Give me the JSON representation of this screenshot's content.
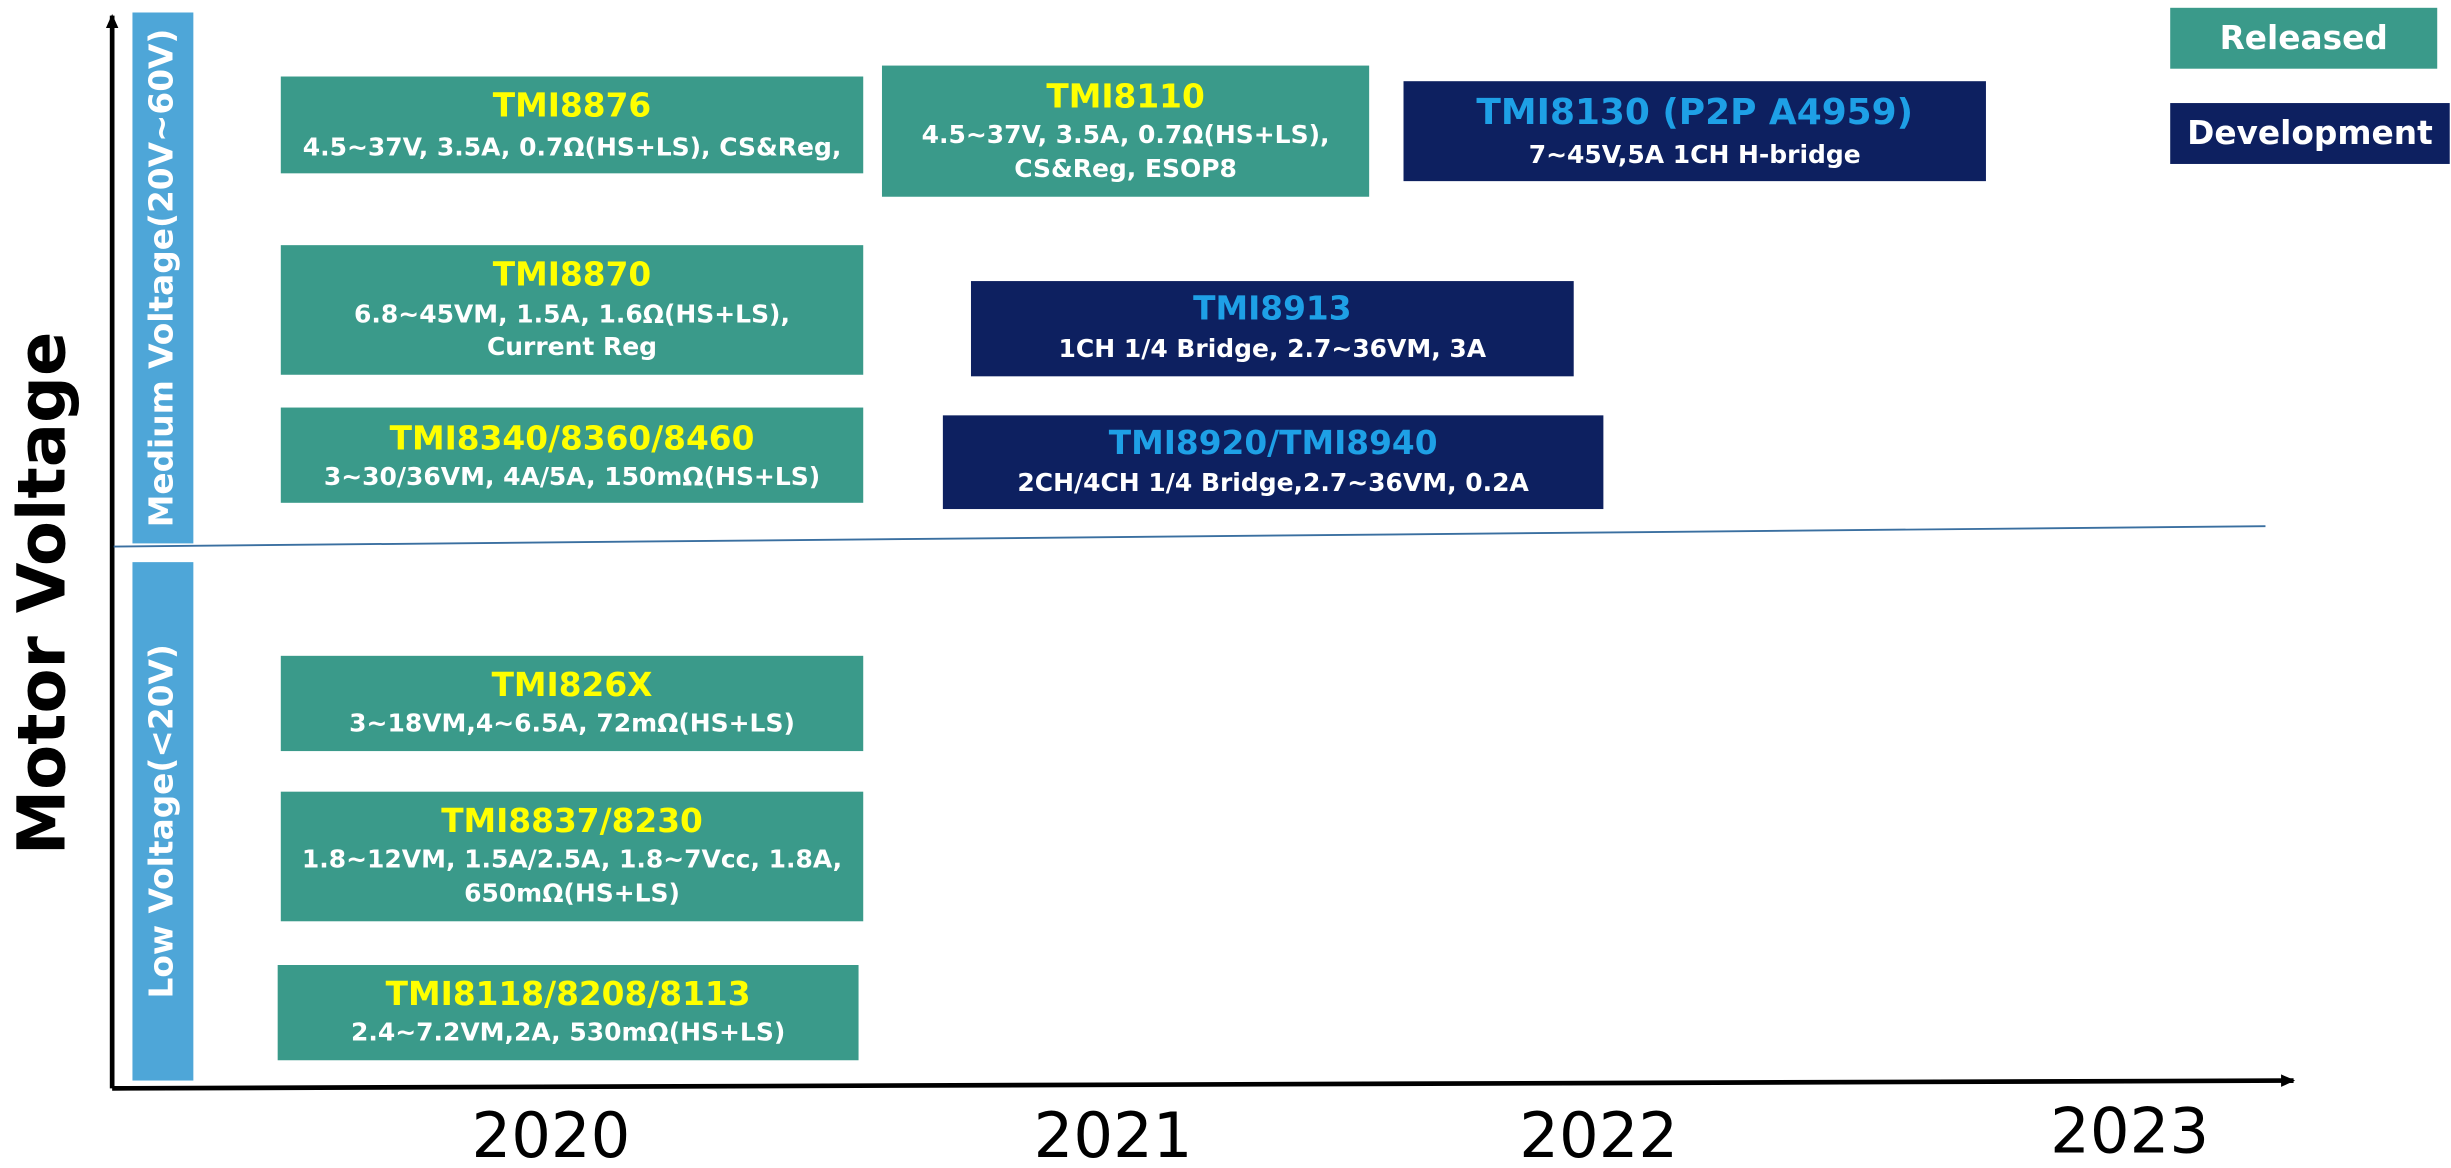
{
  "y_axis_label": "Motor Voltage",
  "bands": [
    "Medium Voltage(20V~60V)",
    "Low Voltage(<20V)"
  ],
  "years": [
    "2020",
    "2021",
    "2022",
    "2023"
  ],
  "legend": [
    {
      "label": "Released",
      "color": "#3a9a8a"
    },
    {
      "label": "Development",
      "color": "#0d2060"
    }
  ],
  "products": [
    {
      "name": "TMI8876",
      "lines": [
        "4.5~37V, 3.5A, 0.7Ω(HS+LS), CS&Reg,"
      ],
      "color": "#3a9a8a",
      "title_color": "#ffff00"
    },
    {
      "name": "TMI8110",
      "lines": [
        "4.5~37V, 3.5A, 0.7Ω(HS+LS),",
        "CS&Reg,   ESOP8"
      ],
      "color": "#3a9a8a",
      "title_color": "#ffff00"
    },
    {
      "name": "TMI8130 (P2P A4959)",
      "lines": [
        "7~45V,5A 1CH H-bridge"
      ],
      "color": "#0d2060",
      "title_color": "#1ea0e6"
    },
    {
      "name": "TMI8870",
      "lines": [
        "6.8~45VM, 1.5A, 1.6Ω(HS+LS),",
        "Current Reg"
      ],
      "color": "#3a9a8a",
      "title_color": "#ffff00"
    },
    {
      "name": "TMI8913",
      "lines": [
        "1CH 1/4 Bridge, 2.7~36VM, 3A"
      ],
      "color": "#0d2060",
      "title_color": "#1ea0e6"
    },
    {
      "name": "TMI8340/8360/8460",
      "lines": [
        "3~30/36VM, 4A/5A,  150mΩ(HS+LS)"
      ],
      "color": "#3a9a8a",
      "title_color": "#ffff00"
    },
    {
      "name": "TMI8920/TMI8940",
      "lines": [
        "2CH/4CH 1/4 Bridge,2.7~36VM,  0.2A"
      ],
      "color": "#0d2060",
      "title_color": "#1ea0e6"
    },
    {
      "name": "TMI826X",
      "lines": [
        "3~18VM,4~6.5A, 72mΩ(HS+LS)"
      ],
      "color": "#3a9a8a",
      "title_color": "#ffff00"
    },
    {
      "name": "TMI8837/8230",
      "lines": [
        "1.8~12VM, 1.5A/2.5A, 1.8~7Vcc, 1.8A,",
        "650mΩ(HS+LS)"
      ],
      "color": "#3a9a8a",
      "title_color": "#ffff00"
    },
    {
      "name": "TMI8118/8208/8113",
      "lines": [
        "2.4~7.2VM,2A, 530mΩ(HS+LS)"
      ],
      "color": "#3a9a8a",
      "title_color": "#ffff00"
    }
  ]
}
